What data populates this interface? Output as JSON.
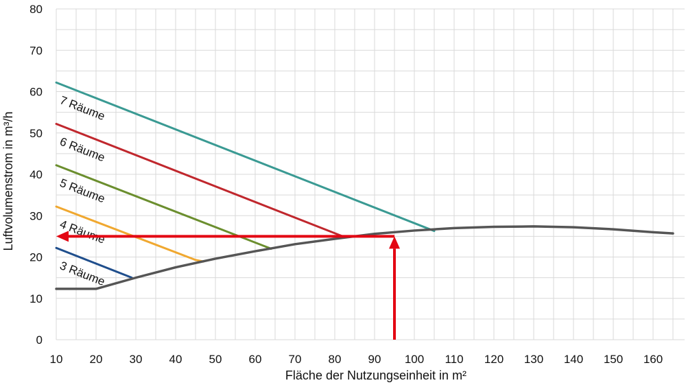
{
  "chart_data": {
    "type": "line",
    "title": "",
    "xlabel": "Fläche der Nutzungseinheit in m²",
    "ylabel": "Luftvolumenstrom in m³/h",
    "xlim": [
      10,
      165
    ],
    "ylim": [
      0,
      80
    ],
    "xticks": [
      10,
      20,
      30,
      40,
      50,
      60,
      70,
      80,
      90,
      100,
      110,
      120,
      130,
      140,
      150,
      160
    ],
    "yticks": [
      0,
      10,
      20,
      30,
      40,
      50,
      60,
      70,
      80
    ],
    "grid": true,
    "series": [
      {
        "name": "3 Räume",
        "color": "#1f4e8c",
        "x": [
          10,
          29
        ],
        "y": [
          22.2,
          15
        ]
      },
      {
        "name": "4 Räume",
        "color": "#f0a830",
        "x": [
          10,
          45,
          47
        ],
        "y": [
          32.2,
          19.3,
          18.9
        ]
      },
      {
        "name": "5 Räume",
        "color": "#6b8e2e",
        "x": [
          10,
          64
        ],
        "y": [
          42.2,
          22
        ]
      },
      {
        "name": "6 Räume",
        "color": "#c0272d",
        "x": [
          10,
          82
        ],
        "y": [
          52.2,
          25
        ]
      },
      {
        "name": "7 Räume",
        "color": "#3a9a93",
        "x": [
          10,
          105
        ],
        "y": [
          62.2,
          26.3
        ]
      },
      {
        "name": "",
        "color": "#555555",
        "x": [
          10,
          17,
          20,
          30,
          40,
          50,
          60,
          70,
          80,
          90,
          100,
          110,
          120,
          130,
          140,
          150,
          160,
          165
        ],
        "y": [
          12.3,
          12.3,
          12.3,
          15,
          17.5,
          19.6,
          21.4,
          23.1,
          24.4,
          25.6,
          26.4,
          27,
          27.3,
          27.4,
          27.2,
          26.7,
          26.0,
          25.7
        ]
      }
    ],
    "annotations": [
      {
        "type": "arrow",
        "color": "#e30613",
        "from": [
          95,
          0
        ],
        "to": [
          95,
          25
        ]
      },
      {
        "type": "arrow",
        "color": "#e30613",
        "from": [
          95,
          25
        ],
        "to": [
          10,
          25
        ]
      }
    ]
  }
}
